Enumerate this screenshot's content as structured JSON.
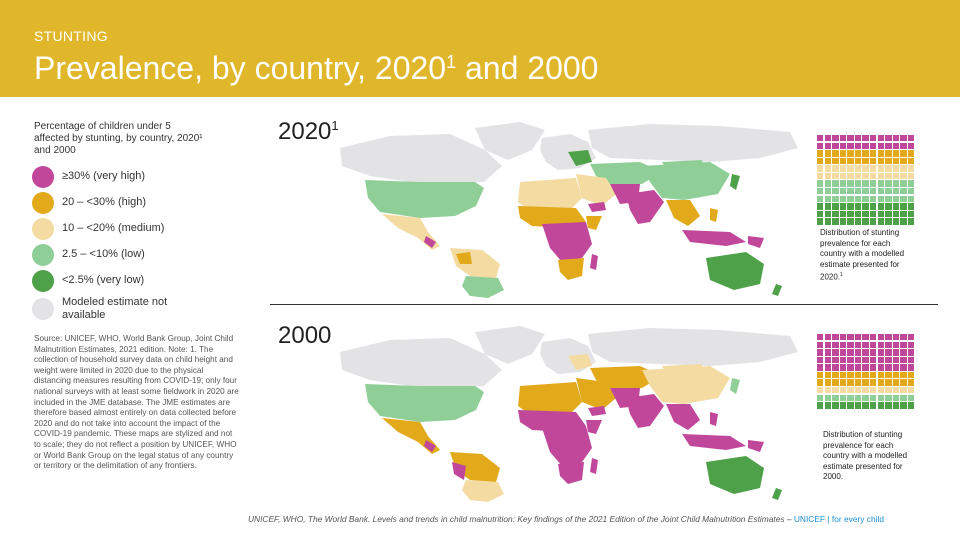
{
  "header": {
    "kicker": "STUNTING",
    "title": "Prevalence, by country, 2020",
    "title_sup": "1",
    "title_suffix": " and 2000"
  },
  "legend": {
    "title": "Percentage of children under 5 affected by stunting, by country, 2020¹ and 2000",
    "items": [
      {
        "label": "≥30% (very high)",
        "color": "#c0479a"
      },
      {
        "label": "20 – <30% (high)",
        "color": "#e2a91a"
      },
      {
        "label": "10 – <20% (medium)",
        "color": "#f3dba2"
      },
      {
        "label": "2.5 – <10% (low)",
        "color": "#8fcf97"
      },
      {
        "label": "<2.5% (very low)",
        "color": "#4ea148"
      },
      {
        "label": "Modeled estimate not available",
        "color": "#e3e3e6"
      }
    ]
  },
  "source_note": "Source: UNICEF, WHO, World Bank Group, Joint Child Malnutrition Estimates, 2021 edition. Note: 1. The collection of household survey data on child height and weight were limited in 2020 due to the physical distancing measures resulting from COVID-19; only four national surveys with at least some fieldwork in 2020 are included in the JME database. The JME estimates are therefore based almost entirely on data collected before 2020 and do not take into account the impact of the COVID-19 pandemic. These maps are stylized and not to scale; they do not reflect a position by UNICEF, WHO or World Bank Group on the legal status of any country or territory or the delimitation of any frontiers.",
  "panels": {
    "p2020": {
      "year": "2020",
      "sup": "1",
      "waffle_note": "Distribution of stunting prevalence for each country with a modelled estimate presented for 2020.",
      "waffle_note_sup": "1"
    },
    "p2000": {
      "year": "2000",
      "sup": "",
      "waffle_note": "Distribution of stunting prevalence for each country with a modelled estimate presented for 2000.",
      "waffle_note_sup": ""
    }
  },
  "footer": {
    "citation": "UNICEF, WHO, The World Bank. Levels and trends in child malnutrition: Key findings of the 2021 Edition of the Joint Child Malnutrition Estimates – ",
    "brand": "UNICEF | for every child"
  },
  "chart_data": [
    {
      "type": "waffle",
      "panel": "2020",
      "categories": [
        "≥30% (very high)",
        "20 – <30% (high)",
        "10 – <20% (medium)",
        "2.5 – <10% (low)",
        "<2.5% (very low)"
      ],
      "values": [
        26,
        26,
        26,
        39,
        39
      ]
    },
    {
      "type": "waffle",
      "panel": "2000",
      "categories": [
        "≥30% (very high)",
        "20 – <30% (high)",
        "10 – <20% (medium)",
        "2.5 – <10% (low)",
        "<2.5% (very low)"
      ],
      "values": [
        65,
        26,
        13,
        13,
        13
      ]
    }
  ]
}
